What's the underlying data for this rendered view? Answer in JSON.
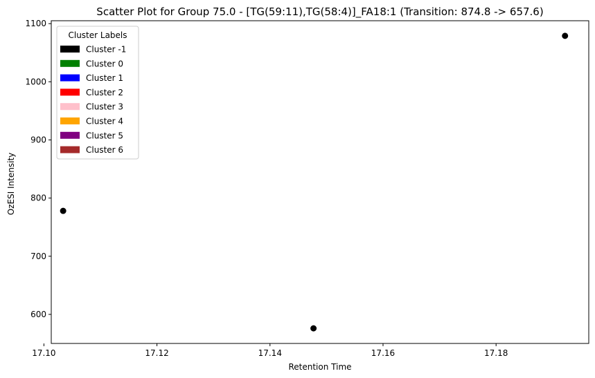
{
  "chart_data": {
    "type": "scatter",
    "title": "Scatter Plot for Group 75.0 - [TG(59:11),TG(58:4)]_FA18:1 (Transition: 874.8 -> 657.6)",
    "xlabel": "Retention Time",
    "ylabel": "OzESI Intensity",
    "xlim": [
      17.1013,
      17.1964
    ],
    "ylim": [
      550,
      1105
    ],
    "xticks": [
      17.1,
      17.12,
      17.14,
      17.16,
      17.18
    ],
    "xtick_labels": [
      "17.10",
      "17.12",
      "17.14",
      "17.16",
      "17.18"
    ],
    "yticks": [
      600,
      700,
      800,
      900,
      1000,
      1100
    ],
    "ytick_labels": [
      "600",
      "700",
      "800",
      "900",
      "1000",
      "1100"
    ],
    "grid": false,
    "legend": {
      "title": "Cluster Labels",
      "placement": "upper-left",
      "entries": [
        {
          "label": "Cluster -1",
          "color": "#000000"
        },
        {
          "label": "Cluster 0",
          "color": "#008000"
        },
        {
          "label": "Cluster 1",
          "color": "#0000ff"
        },
        {
          "label": "Cluster 2",
          "color": "#ff0000"
        },
        {
          "label": "Cluster 3",
          "color": "#ffc0cb"
        },
        {
          "label": "Cluster 4",
          "color": "#ffa500"
        },
        {
          "label": "Cluster 5",
          "color": "#800080"
        },
        {
          "label": "Cluster 6",
          "color": "#a52a2a"
        }
      ]
    },
    "points": [
      {
        "x": 17.1034,
        "y": 778,
        "cluster": -1,
        "color": "#000000"
      },
      {
        "x": 17.1477,
        "y": 576,
        "cluster": -1,
        "color": "#000000"
      },
      {
        "x": 17.1922,
        "y": 1079,
        "cluster": -1,
        "color": "#000000"
      }
    ]
  }
}
